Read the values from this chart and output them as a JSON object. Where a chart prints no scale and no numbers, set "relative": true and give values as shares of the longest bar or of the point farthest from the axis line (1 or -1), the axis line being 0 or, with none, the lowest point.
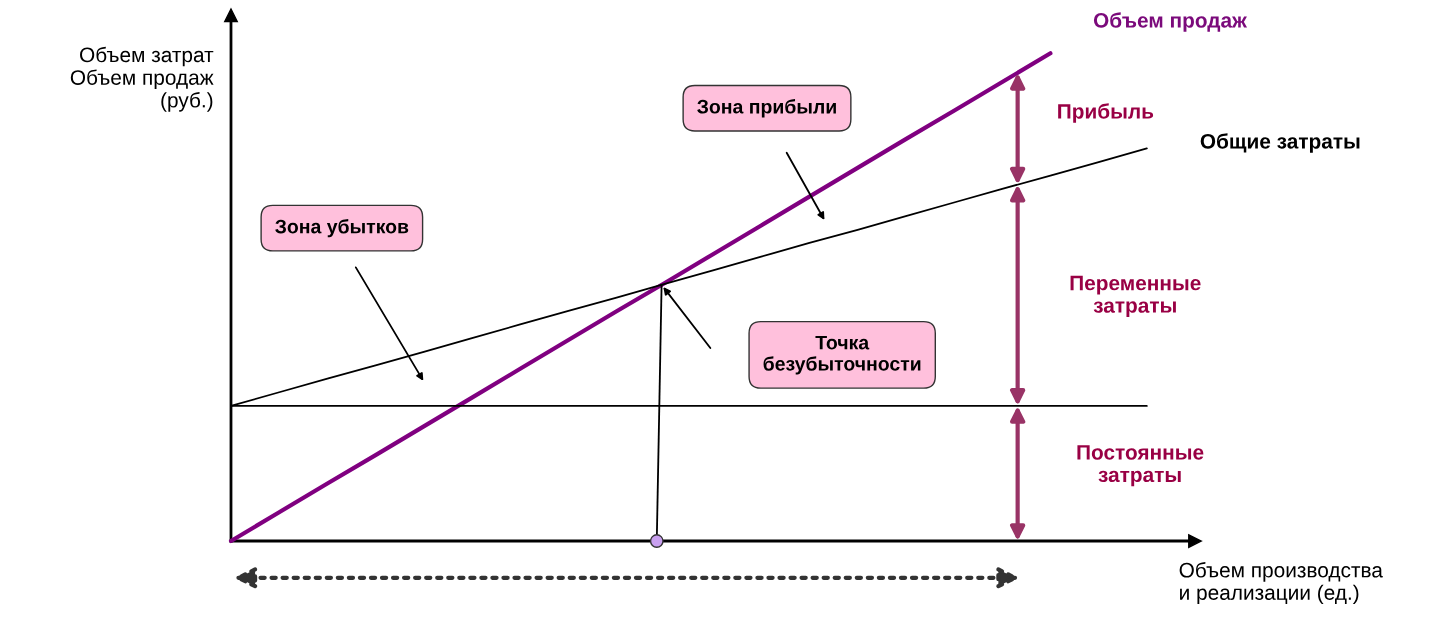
{
  "chart_data": {
    "type": "line",
    "relative": true,
    "ylabel": "Объем затрат\nОбъем продаж\n(руб.)",
    "xlabel": "Объем производства\nи реализации (ед.)",
    "legend": false,
    "marker": "none",
    "line_style": "solid",
    "categories": [
      null,
      null,
      null,
      null,
      null,
      null,
      null,
      null,
      null,
      null,
      null,
      null,
      null,
      null,
      null,
      null,
      null,
      null,
      null,
      null
    ],
    "series": [
      {
        "name": "Объем продаж",
        "color": "#800080",
        "values": [
          0,
          0.059,
          0.118,
          0.176,
          0.235,
          0.294,
          0.353,
          0.412,
          0.471,
          0.529,
          0.588,
          0.647,
          0.706,
          0.765,
          0.824,
          0.882,
          0.941,
          1,
          null,
          null
        ]
      },
      {
        "name": "Общие затраты",
        "color": "#000000",
        "values": [
          0.277,
          0.305,
          0.333,
          0.36,
          0.388,
          0.416,
          0.444,
          0.472,
          0.499,
          0.527,
          0.555,
          0.583,
          0.611,
          0.638,
          0.666,
          0.694,
          0.722,
          0.749,
          0.777,
          0.805
        ]
      },
      {
        "color": "#000000",
        "values": [
          0.277,
          0.277,
          0.277,
          0.277,
          0.277,
          0.277,
          0.277,
          0.277,
          0.277,
          0.277,
          0.277,
          0.277,
          0.277,
          0.277,
          0.277,
          0.277,
          0.277,
          0.277,
          0.277,
          0.277
        ]
      }
    ],
    "annotations": [
      "Зона прибыли",
      "Зона убытков",
      "Точка\nбезубыточности",
      "Прибыль",
      "Переменные\nзатраты",
      "Постоянные\nзатраты"
    ]
  }
}
